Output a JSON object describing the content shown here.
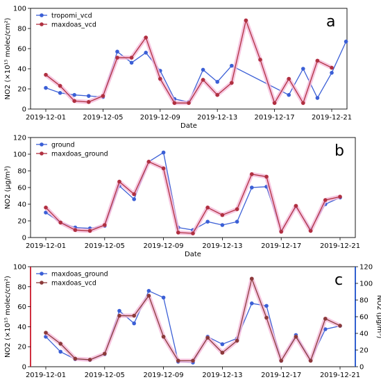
{
  "chart_data": [
    {
      "type": "line",
      "panel": "a",
      "xlabel": "Date",
      "ylabel": "NO2 (×10¹⁵ molec/cm²)",
      "ylim": [
        0,
        100
      ],
      "yticks": [
        0,
        20,
        40,
        60,
        80,
        100
      ],
      "xticks": [
        "2019-12-01",
        "2019-12-05",
        "2019-12-09",
        "2019-12-13",
        "2019-12-17",
        "2019-12-21"
      ],
      "legend_placement": "top-left",
      "grid": false,
      "series": [
        {
          "name": "tropomi_vcd",
          "color": "#3b5fd6",
          "axis": "left",
          "points": [
            [
              0,
              21
            ],
            [
              1,
              16
            ],
            [
              2,
              14
            ],
            [
              3,
              13
            ],
            [
              4,
              12
            ],
            [
              5,
              57
            ],
            [
              6,
              46
            ],
            [
              7,
              56
            ],
            [
              8,
              38
            ],
            [
              9,
              10
            ],
            [
              10,
              7
            ],
            [
              11,
              39
            ],
            [
              12,
              27
            ],
            [
              13,
              43
            ],
            [
              17,
              14
            ],
            [
              18,
              40
            ],
            [
              19,
              11
            ],
            [
              20,
              36
            ],
            [
              21,
              67
            ]
          ]
        },
        {
          "name": "maxdoas_vcd",
          "color": "#b03040",
          "axis": "left",
          "points": [
            [
              0,
              34
            ],
            [
              1,
              23
            ],
            [
              2,
              8
            ],
            [
              3,
              7
            ],
            [
              4,
              13
            ],
            [
              5,
              51
            ],
            [
              6,
              51
            ],
            [
              7,
              71
            ],
            [
              8,
              30
            ],
            [
              9,
              6
            ],
            [
              10,
              6
            ],
            [
              11,
              29
            ],
            [
              12,
              14
            ],
            [
              13,
              26
            ],
            [
              14,
              88
            ],
            [
              15,
              49
            ],
            [
              16,
              6
            ],
            [
              17,
              30
            ],
            [
              18,
              6
            ],
            [
              19,
              48
            ],
            [
              20,
              41
            ]
          ]
        }
      ]
    },
    {
      "type": "line",
      "panel": "b",
      "xlabel": "Date",
      "ylabel": "NO2 (μg/m³)",
      "ylim": [
        0,
        120
      ],
      "yticks": [
        0,
        20,
        40,
        60,
        80,
        100,
        120
      ],
      "xticks": [
        "2019-12-01",
        "2019-12-05",
        "2019-12-09",
        "2019-12-13",
        "2019-12-17",
        "2019-12-21"
      ],
      "legend_placement": "top-left",
      "grid": false,
      "series": [
        {
          "name": "ground",
          "color": "#3b5fd6",
          "axis": "left",
          "points": [
            [
              0,
              30
            ],
            [
              1,
              18
            ],
            [
              2,
              12
            ],
            [
              3,
              11
            ],
            [
              4,
              14
            ],
            [
              5,
              62
            ],
            [
              6,
              46
            ],
            [
              7,
              91
            ],
            [
              8,
              102
            ],
            [
              9,
              12
            ],
            [
              10,
              9
            ],
            [
              11,
              19
            ],
            [
              12,
              15
            ],
            [
              13,
              19
            ],
            [
              14,
              60
            ],
            [
              15,
              61
            ],
            [
              16,
              8
            ],
            [
              17,
              37
            ],
            [
              18,
              10
            ],
            [
              19,
              40
            ],
            [
              20,
              48
            ]
          ]
        },
        {
          "name": "maxdoas_ground",
          "color": "#b03040",
          "axis": "left",
          "points": [
            [
              0,
              36
            ],
            [
              1,
              18
            ],
            [
              2,
              9
            ],
            [
              3,
              8
            ],
            [
              4,
              15
            ],
            [
              5,
              67
            ],
            [
              6,
              52
            ],
            [
              7,
              91
            ],
            [
              8,
              83
            ],
            [
              9,
              6
            ],
            [
              10,
              5
            ],
            [
              11,
              36
            ],
            [
              12,
              27
            ],
            [
              13,
              34
            ],
            [
              14,
              76
            ],
            [
              15,
              73
            ],
            [
              16,
              7
            ],
            [
              17,
              38
            ],
            [
              18,
              8
            ],
            [
              19,
              45
            ],
            [
              20,
              49
            ]
          ]
        }
      ]
    },
    {
      "type": "line",
      "panel": "c",
      "xlabel": "",
      "ylabel": "NO2 (×10¹⁵ molec/cm²)",
      "ylabel_right": "NO2 (μg/m³)",
      "ylim": [
        0,
        100
      ],
      "ylim_right": [
        0,
        120
      ],
      "yticks": [
        0,
        20,
        40,
        60,
        80,
        100
      ],
      "yticks_right": [
        0,
        20,
        40,
        60,
        80,
        100,
        120
      ],
      "xticks": [
        "2019-12-01",
        "2019-12-05",
        "2019-12-09",
        "2019-12-13",
        "2019-12-17",
        "2019-12-21"
      ],
      "legend_placement": "top-left",
      "grid": false,
      "series": [
        {
          "name": "maxdoas_ground",
          "color": "#3b5fd6",
          "axis": "right",
          "points": [
            [
              0,
              36
            ],
            [
              1,
              18
            ],
            [
              2,
              9
            ],
            [
              3,
              8
            ],
            [
              4,
              15
            ],
            [
              5,
              67
            ],
            [
              6,
              52
            ],
            [
              7,
              91
            ],
            [
              8,
              83
            ],
            [
              9,
              6
            ],
            [
              10,
              5
            ],
            [
              11,
              36
            ],
            [
              12,
              27
            ],
            [
              13,
              34
            ],
            [
              14,
              76
            ],
            [
              15,
              73
            ],
            [
              16,
              7
            ],
            [
              17,
              38
            ],
            [
              18,
              8
            ],
            [
              19,
              45
            ],
            [
              20,
              49
            ]
          ]
        },
        {
          "name": "maxdoas_vcd",
          "color": "#8b3a3a",
          "axis": "left",
          "points": [
            [
              0,
              34
            ],
            [
              1,
              23
            ],
            [
              2,
              8
            ],
            [
              3,
              7
            ],
            [
              4,
              13
            ],
            [
              5,
              51
            ],
            [
              6,
              51
            ],
            [
              7,
              71
            ],
            [
              8,
              30
            ],
            [
              9,
              6
            ],
            [
              10,
              6
            ],
            [
              11,
              29
            ],
            [
              12,
              14
            ],
            [
              13,
              26
            ],
            [
              14,
              88
            ],
            [
              15,
              49
            ],
            [
              16,
              6
            ],
            [
              17,
              30
            ],
            [
              18,
              6
            ],
            [
              19,
              48
            ],
            [
              20,
              41
            ]
          ]
        }
      ]
    }
  ]
}
